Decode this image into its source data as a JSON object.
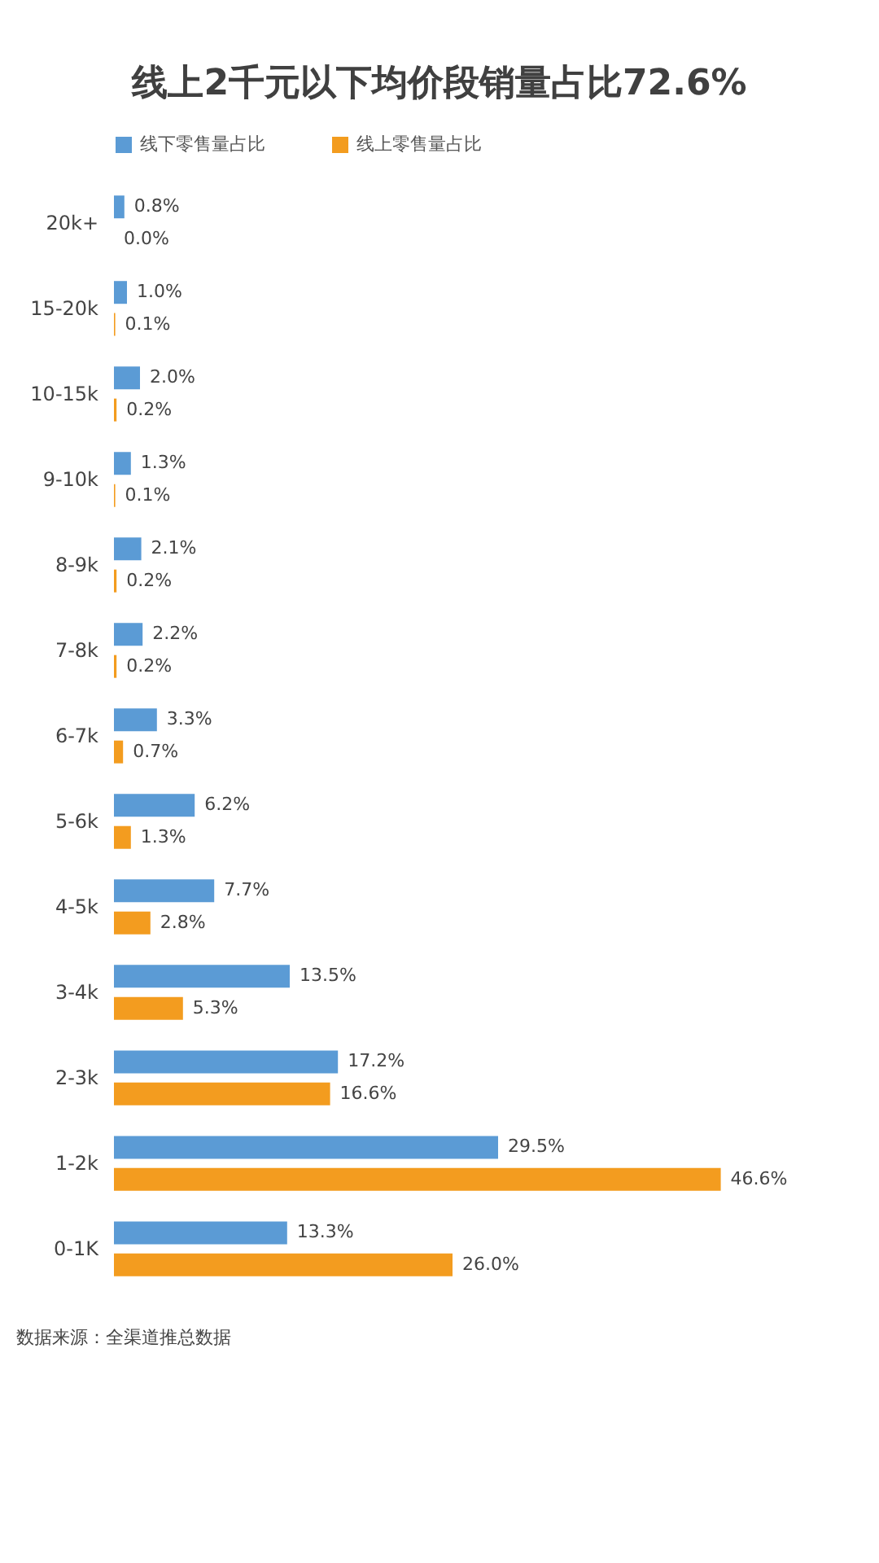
{
  "chart_data": {
    "type": "bar",
    "orientation": "horizontal",
    "title": "线上2千元以下均价段销量占比72.6%",
    "categories": [
      "20k+",
      "15-20k",
      "10-15k",
      "9-10k",
      "8-9k",
      "7-8k",
      "6-7k",
      "5-6k",
      "4-5k",
      "3-4k",
      "2-3k",
      "1-2k",
      "0-1K"
    ],
    "series": [
      {
        "name": "线下零售量占比",
        "color": "#5b9bd5",
        "values": [
          0.8,
          1.0,
          2.0,
          1.3,
          2.1,
          2.2,
          3.3,
          6.2,
          7.7,
          13.5,
          17.2,
          29.5,
          13.3
        ],
        "value_labels": [
          "0.8%",
          "1.0%",
          "2.0%",
          "1.3%",
          "2.1%",
          "2.2%",
          "3.3%",
          "6.2%",
          "7.7%",
          "13.5%",
          "17.2%",
          "29.5%",
          "13.3%"
        ]
      },
      {
        "name": "线上零售量占比",
        "color": "#f39c1f",
        "values": [
          0.0,
          0.1,
          0.2,
          0.1,
          0.2,
          0.2,
          0.7,
          1.3,
          2.8,
          5.3,
          16.6,
          46.6,
          26.0
        ],
        "value_labels": [
          "0.0%",
          "0.1%",
          "0.2%",
          "0.1%",
          "0.2%",
          "0.2%",
          "0.7%",
          "1.3%",
          "2.8%",
          "5.3%",
          "16.6%",
          "46.6%",
          "26.0%"
        ]
      }
    ],
    "legend": "top",
    "grid": false,
    "annotations": [
      "数据来源：全渠道推总数据"
    ]
  }
}
